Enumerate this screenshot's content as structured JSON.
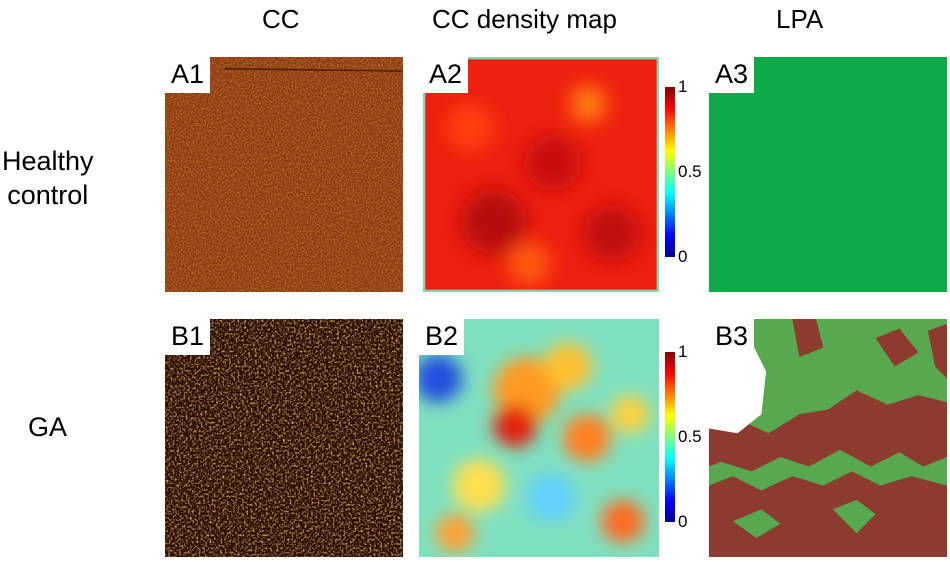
{
  "columns": {
    "cc": "CC",
    "density": "CC density map",
    "lpa": "LPA"
  },
  "rows": {
    "healthy": [
      "Healthy",
      "control"
    ],
    "ga": "GA"
  },
  "panels": {
    "a1": "A1",
    "a2": "A2",
    "a3": "A3",
    "b1": "B1",
    "b2": "B2",
    "b3": "B3"
  },
  "colorbar": {
    "max": "1",
    "mid": "0.5",
    "min": "0"
  },
  "colors": {
    "lpa_green": "#0cab48",
    "lpa_light_green": "#57a84e",
    "lpa_brown": "#8c3b2e",
    "cc_healthy": "#a3481a",
    "cc_ga": "#3a1204"
  }
}
